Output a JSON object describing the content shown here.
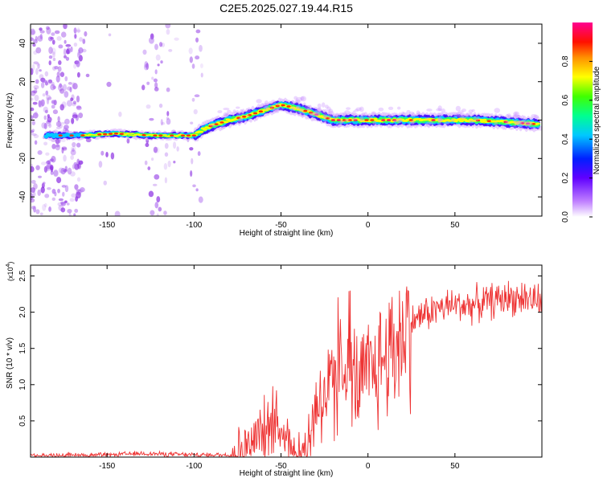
{
  "figure": {
    "title": "C2E5.2025.027.19.44.R15"
  },
  "chart_data": [
    {
      "type": "heatmap",
      "title": "C2E5.2025.027.19.44.R15",
      "xlabel": "Height of straight line (km)",
      "ylabel": "Frequency (Hz)",
      "xlim": [
        -194,
        100
      ],
      "ylim": [
        -50,
        50
      ],
      "x_ticks": [
        -150,
        -100,
        -50,
        0,
        50
      ],
      "y_ticks": [
        -40,
        -20,
        0,
        20,
        40
      ],
      "colorbar": {
        "label": "Normalized spectral amplitude",
        "range": [
          0,
          1
        ],
        "ticks": [
          "0.0",
          "0.2",
          "0.4",
          "0.6",
          "0.8"
        ],
        "colors": [
          "#ffffff",
          "#a040ff",
          "#0000ff",
          "#00c8ff",
          "#00ff90",
          "#40ff00",
          "#ffff00",
          "#ff9000",
          "#ff0000",
          "#ff0090"
        ]
      },
      "ridge": {
        "x": [
          -190,
          -165,
          -145,
          -125,
          -100,
          -95,
          -90,
          -80,
          -70,
          -60,
          -50,
          -45,
          -40,
          -30,
          -20,
          -10,
          0,
          20,
          40,
          60,
          80,
          95
        ],
        "frequency": [
          -8,
          -8,
          -7,
          -8,
          -8,
          -5,
          -3,
          0,
          2,
          5,
          8,
          7,
          6,
          3,
          0,
          0,
          0,
          0,
          0,
          0,
          -1,
          -2
        ]
      }
    },
    {
      "type": "line",
      "xlabel": "Height of straight line (km)",
      "ylabel": "SNR (10 * v/v)",
      "y_multiplier": "(x10",
      "y_multiplier_exp": "4",
      "y_multiplier_close": ")",
      "xlim": [
        -194,
        100
      ],
      "ylim": [
        0,
        2.65
      ],
      "x_ticks": [
        -150,
        -100,
        -50,
        0,
        50
      ],
      "y_ticks": [
        "0.5",
        "1.0",
        "1.5",
        "2.0",
        "2.5"
      ],
      "y_tick_values": [
        0.5,
        1.0,
        1.5,
        2.0,
        2.5
      ],
      "color": "#ee3333",
      "series": [
        {
          "x": [
            -194,
            -150,
            -130,
            -100,
            -80,
            -75,
            -70,
            -65,
            -60,
            -55,
            -50,
            -45,
            -40,
            -35,
            -32,
            -30,
            -28,
            -25,
            -20,
            -15,
            -10,
            -5,
            0,
            5,
            10,
            15,
            20,
            25,
            30,
            40,
            50,
            60,
            70,
            80,
            90,
            100
          ],
          "values": [
            0.02,
            0.03,
            0.05,
            0.03,
            0.03,
            0.08,
            0.15,
            0.25,
            0.35,
            0.45,
            0.4,
            0.22,
            0.08,
            0.12,
            0.45,
            0.8,
            0.75,
            0.85,
            0.95,
            1.05,
            1.1,
            1.0,
            1.1,
            1.25,
            1.4,
            1.55,
            1.7,
            1.85,
            1.95,
            2.05,
            2.1,
            2.1,
            2.15,
            2.2,
            2.2,
            2.15
          ]
        }
      ]
    }
  ]
}
